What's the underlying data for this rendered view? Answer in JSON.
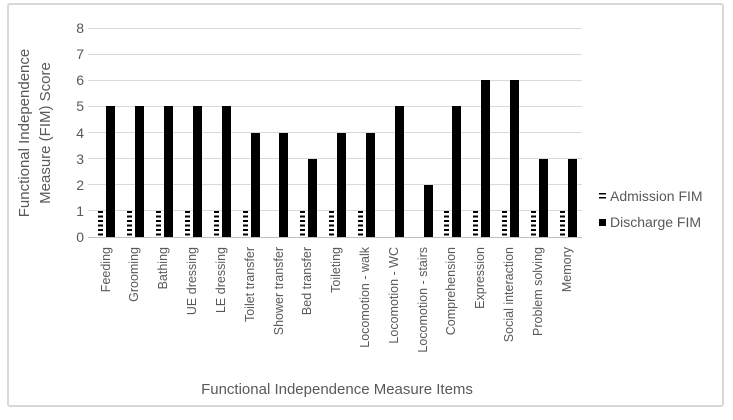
{
  "chart_data": {
    "type": "bar",
    "title": "",
    "xlabel": "Functional Independence Measure Items",
    "ylabel": "Functional Independence Measure (FIM) Score",
    "ylabel_lines": [
      "Functional Independence",
      "Measure (FIM) Score"
    ],
    "ylim": [
      0,
      8
    ],
    "ytick_step": 1,
    "grid": true,
    "legend_position": "right",
    "categories": [
      "Feeding",
      "Grooming",
      "Bathing",
      "UE dressing",
      "LE dressing",
      "Toilet transfer",
      "Shower transfer",
      "Bed transfer",
      "Toileting",
      "Locomotion - walk",
      "Locomotion - WC",
      "Locomotion - stairs",
      "Comprehension",
      "Expression",
      "Social interaction",
      "Problem solving",
      "Memory"
    ],
    "series": [
      {
        "name": "Admission FIM",
        "fill": "horizontal-dash-pattern",
        "values": [
          1,
          1,
          1,
          1,
          1,
          1,
          0,
          1,
          1,
          1,
          0,
          0,
          1,
          1,
          1,
          1,
          1
        ]
      },
      {
        "name": "Discharge FIM",
        "fill": "solid",
        "values": [
          5,
          5,
          5,
          5,
          5,
          4,
          4,
          3,
          4,
          4,
          5,
          2,
          5,
          6,
          6,
          3,
          3
        ]
      }
    ]
  },
  "colors": {
    "bar": "#000000",
    "text": "#595959",
    "gridline": "#d9d9d9",
    "axis_line": "#bfbfbf",
    "frame_border": "#d8d8d8",
    "background": "#ffffff"
  }
}
